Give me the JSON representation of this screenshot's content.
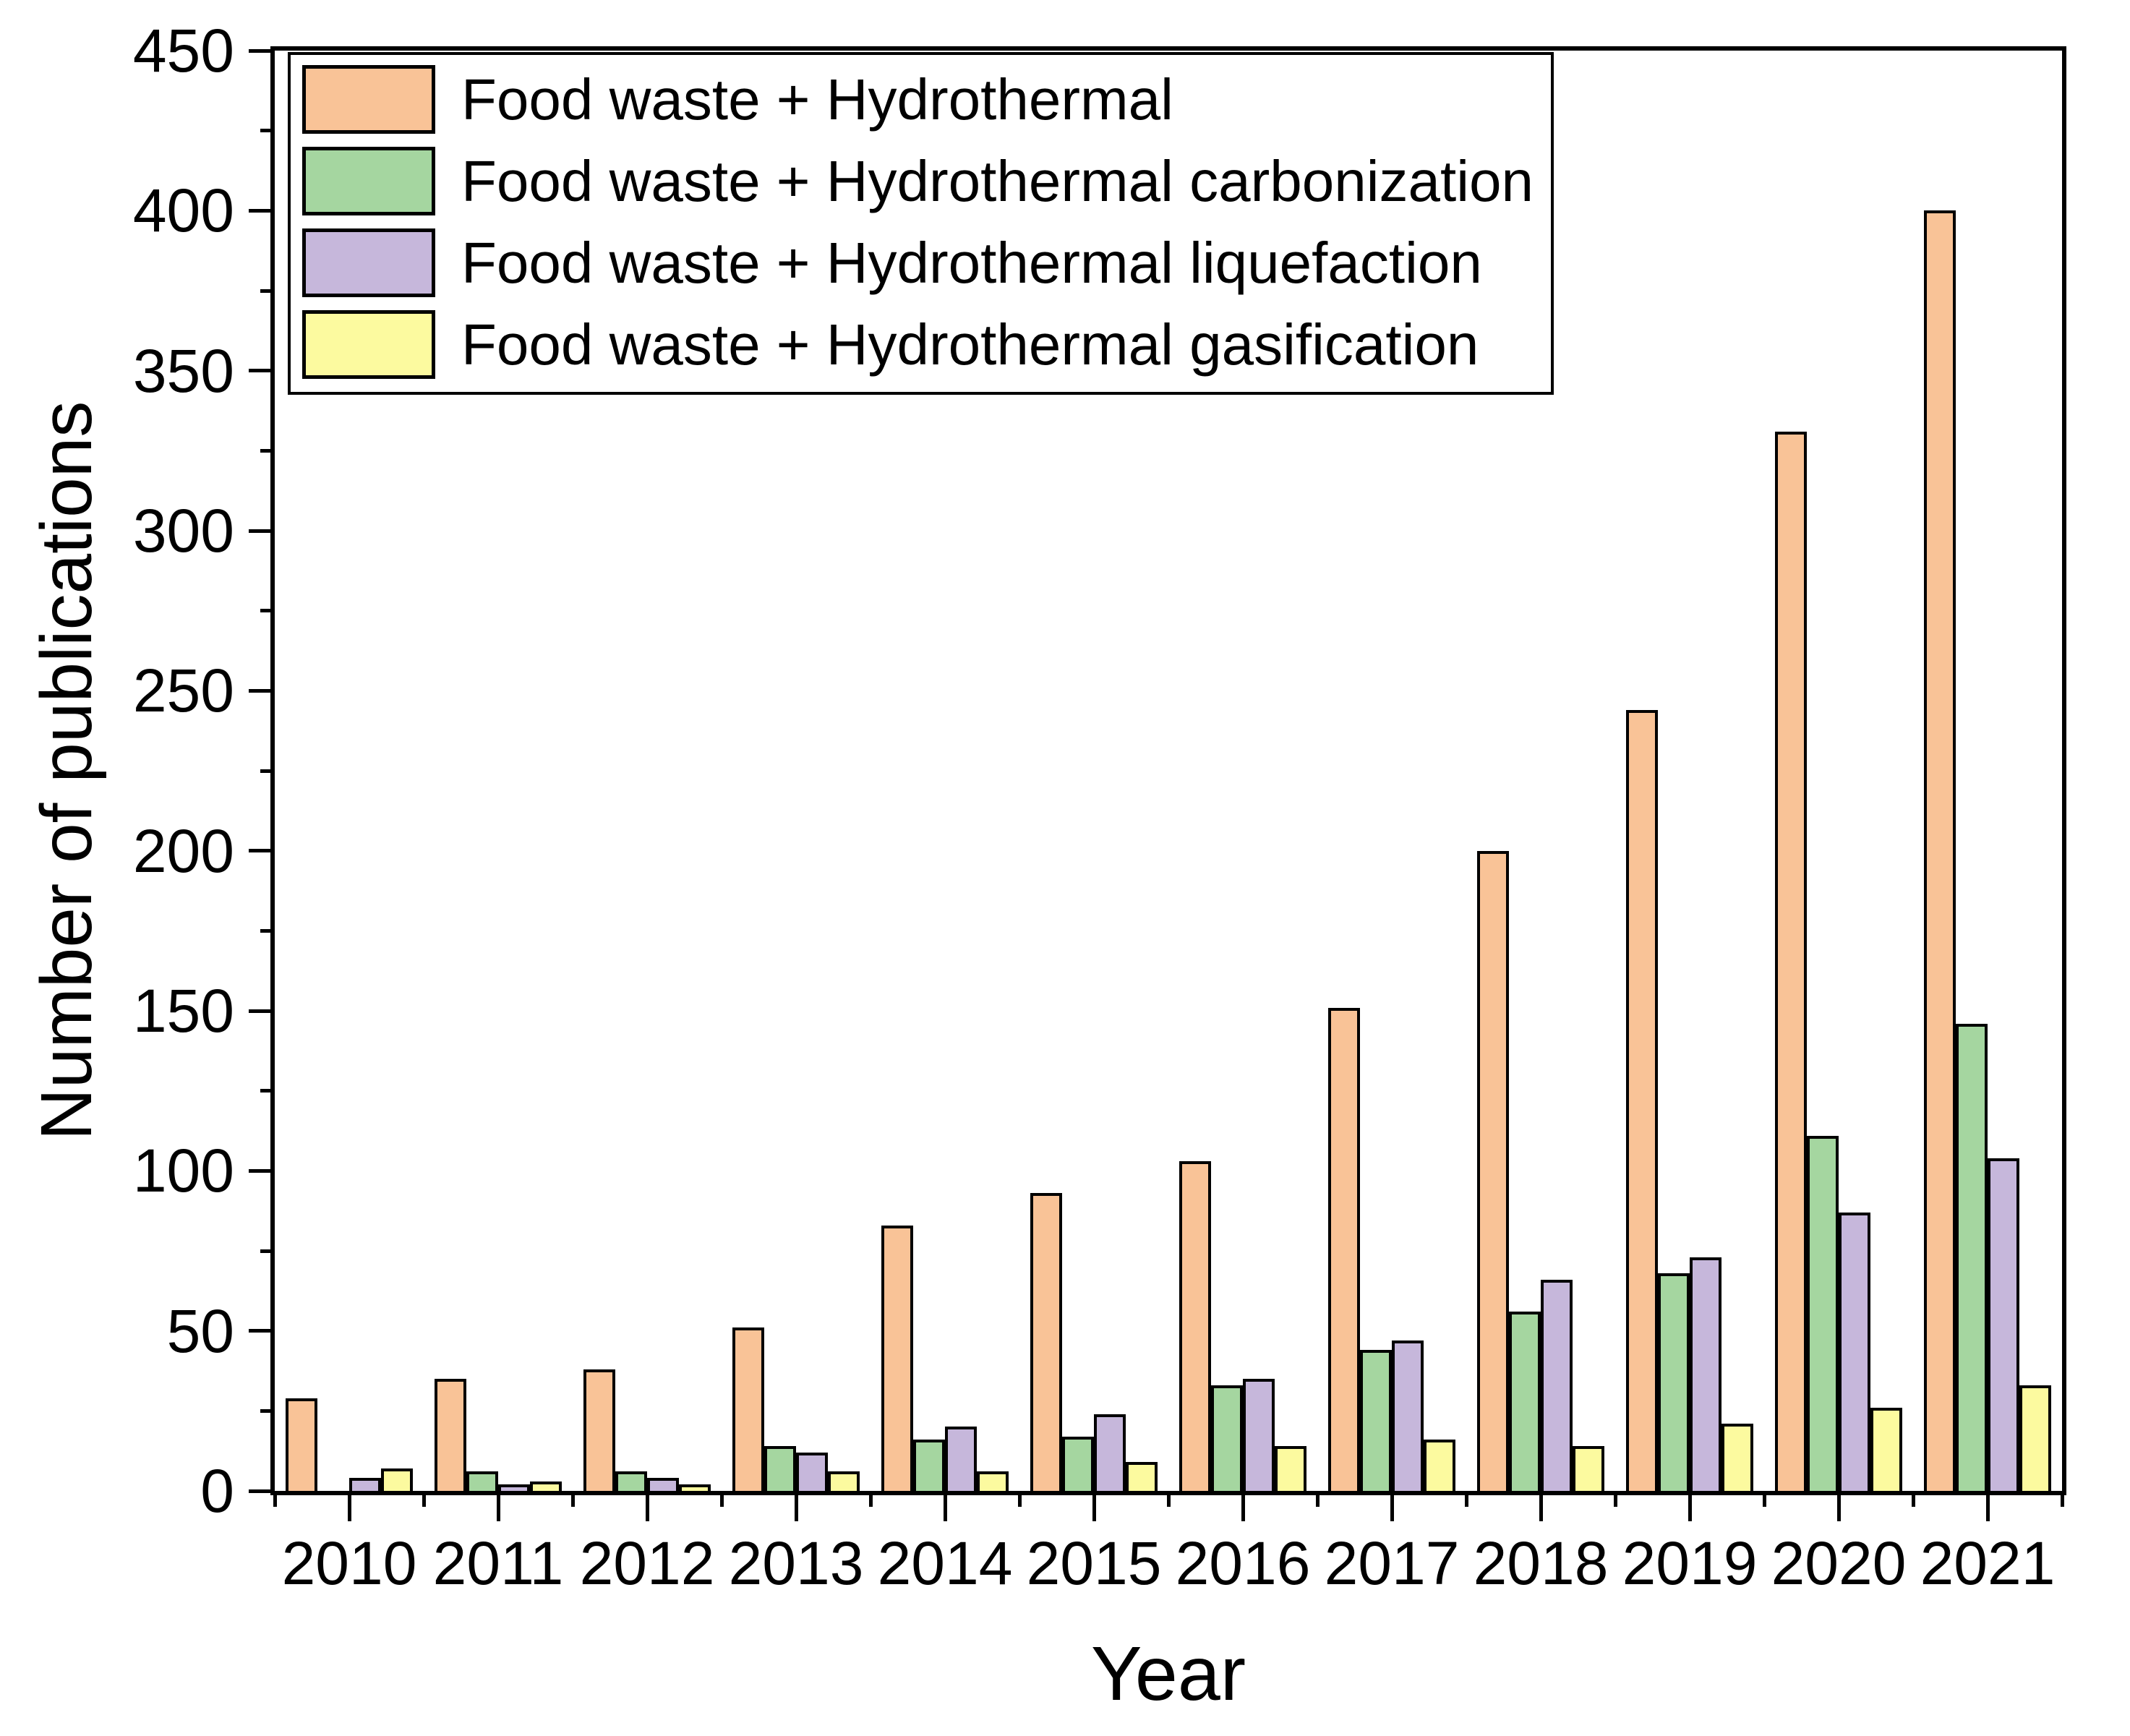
{
  "axes": {
    "x_title": "Year",
    "y_title": "Number of publications"
  },
  "chart_data": {
    "type": "bar",
    "title": "",
    "xlabel": "Year",
    "ylabel": "Number of publications",
    "categories": [
      "2010",
      "2011",
      "2012",
      "2013",
      "2014",
      "2015",
      "2016",
      "2017",
      "2018",
      "2019",
      "2020",
      "2021"
    ],
    "series": [
      {
        "name": "Food waste + Hydrothermal",
        "color": "#F9C397",
        "values": [
          29,
          35,
          38,
          51,
          83,
          93,
          103,
          151,
          200,
          244,
          331,
          400
        ]
      },
      {
        "name": "Food waste + Hydrothermal carbonization",
        "color": "#A5D6A0",
        "values": [
          0,
          6,
          6,
          14,
          16,
          17,
          33,
          44,
          56,
          68,
          111,
          146
        ]
      },
      {
        "name": "Food waste + Hydrothermal liquefaction",
        "color": "#C6B7DB",
        "values": [
          4,
          2,
          4,
          12,
          20,
          24,
          35,
          47,
          66,
          73,
          87,
          104
        ]
      },
      {
        "name": "Food waste + Hydrothermal gasification",
        "color": "#FCFA9F",
        "values": [
          7,
          3,
          2,
          6,
          6,
          9,
          14,
          16,
          14,
          21,
          26,
          33
        ]
      }
    ],
    "ylim": [
      0,
      450
    ],
    "y_tick_step": 50,
    "y_minor_step": 25,
    "y_tick_labels": [
      "0",
      "50",
      "100",
      "150",
      "200",
      "250",
      "300",
      "350",
      "400",
      "450"
    ],
    "legend_position": "top-left-inside",
    "grid": false,
    "bar_outline_color": "#000000",
    "axis_color": "#000000",
    "background_color": "#ffffff"
  }
}
